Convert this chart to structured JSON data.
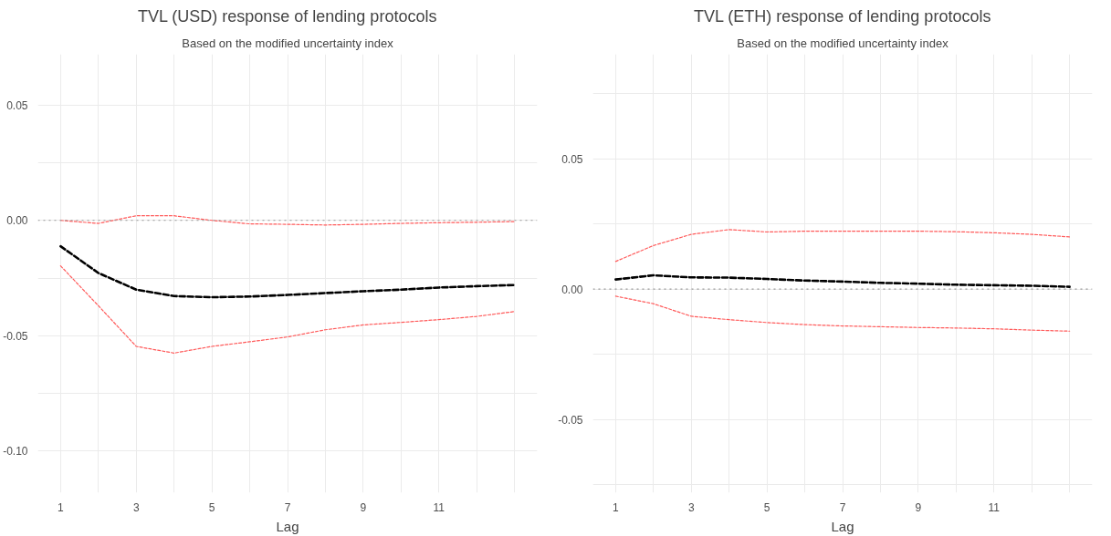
{
  "chart_data": [
    {
      "type": "line",
      "title": "TVL (USD) response of lending protocols",
      "subtitle": "Based on the modified uncertainty index",
      "xlabel": "Lag",
      "x": [
        1,
        2,
        3,
        4,
        5,
        6,
        7,
        8,
        9,
        10,
        11,
        12,
        13
      ],
      "line_style": "dashed",
      "marker": "none",
      "grid": true,
      "series": [
        {
          "color": "#000000",
          "values": [
            -0.0112,
            -0.0228,
            -0.03,
            -0.0328,
            -0.0333,
            -0.033,
            -0.0323,
            -0.0315,
            -0.0307,
            -0.03,
            -0.0291,
            -0.0285,
            -0.028
          ]
        },
        {
          "color": "#ff5a5a",
          "values": [
            0.0,
            -0.0013,
            0.002,
            0.002,
            0.0,
            -0.0015,
            -0.0017,
            -0.002,
            -0.0017,
            -0.0013,
            -0.001,
            -0.0008,
            -0.0005
          ]
        },
        {
          "color": "#ff5a5a",
          "values": [
            -0.0197,
            -0.037,
            -0.0546,
            -0.0575,
            -0.0546,
            -0.0526,
            -0.0505,
            -0.0474,
            -0.0453,
            -0.0442,
            -0.043,
            -0.0416,
            -0.0395
          ]
        }
      ],
      "ref_lines": [
        {
          "axis": "y",
          "value": 0,
          "label": null,
          "color": "#999999",
          "line_style": "dotted"
        }
      ],
      "xlim": [
        0.4,
        13.6
      ],
      "ylim": [
        -0.118,
        0.072
      ],
      "xticks": [
        1,
        {
          "value": 2,
          "label": null
        },
        3,
        {
          "value": 4,
          "label": null
        },
        5,
        {
          "value": 6,
          "label": null
        },
        7,
        {
          "value": 8,
          "label": null
        },
        9,
        {
          "value": 10,
          "label": null
        },
        11,
        {
          "value": 12,
          "label": null
        },
        {
          "value": 13,
          "label": null
        }
      ],
      "yticks": [
        {
          "value": -0.1,
          "label": "-0.10"
        },
        {
          "value": -0.075,
          "label": null
        },
        {
          "value": -0.05,
          "label": "-0.05"
        },
        {
          "value": -0.025,
          "label": null
        },
        {
          "value": 0,
          "label": "0.00"
        },
        {
          "value": 0.025,
          "label": null
        },
        {
          "value": 0.05,
          "label": "0.05"
        }
      ]
    },
    {
      "type": "line",
      "title": "TVL (ETH) response of lending protocols",
      "subtitle": "Based on the modified uncertainty index",
      "xlabel": "Lag",
      "x": [
        1,
        2,
        3,
        4,
        5,
        6,
        7,
        8,
        9,
        10,
        11,
        12,
        13
      ],
      "line_style": "dashed",
      "marker": "none",
      "grid": true,
      "series": [
        {
          "color": "#000000",
          "values": [
            0.0037,
            0.0053,
            0.0045,
            0.0044,
            0.0039,
            0.0033,
            0.0029,
            0.0024,
            0.0021,
            0.0017,
            0.0015,
            0.0013,
            0.0009
          ]
        },
        {
          "color": "#ff5a5a",
          "values": [
            0.0106,
            0.0167,
            0.021,
            0.0228,
            0.0219,
            0.0222,
            0.0222,
            0.0222,
            0.0222,
            0.022,
            0.0216,
            0.021,
            0.02
          ]
        },
        {
          "color": "#ff5a5a",
          "values": [
            -0.0027,
            -0.0056,
            -0.0104,
            -0.0117,
            -0.0128,
            -0.0136,
            -0.0141,
            -0.0144,
            -0.0147,
            -0.0149,
            -0.0152,
            -0.0157,
            -0.0161
          ]
        }
      ],
      "ref_lines": [
        {
          "axis": "y",
          "value": 0,
          "label": null,
          "color": "#999999",
          "line_style": "dotted"
        }
      ],
      "xlim": [
        0.4,
        13.6
      ],
      "ylim": [
        -0.078,
        0.09
      ],
      "xticks": [
        1,
        {
          "value": 2,
          "label": null
        },
        3,
        {
          "value": 4,
          "label": null
        },
        5,
        {
          "value": 6,
          "label": null
        },
        7,
        {
          "value": 8,
          "label": null
        },
        9,
        {
          "value": 10,
          "label": null
        },
        11,
        {
          "value": 12,
          "label": null
        },
        {
          "value": 13,
          "label": null
        }
      ],
      "yticks": [
        {
          "value": -0.075,
          "label": null
        },
        {
          "value": -0.05,
          "label": "-0.05"
        },
        {
          "value": -0.025,
          "label": null
        },
        {
          "value": 0,
          "label": "0.00"
        },
        {
          "value": 0.025,
          "label": null
        },
        {
          "value": 0.05,
          "label": "0.05"
        },
        {
          "value": 0.075,
          "label": null
        }
      ]
    }
  ]
}
